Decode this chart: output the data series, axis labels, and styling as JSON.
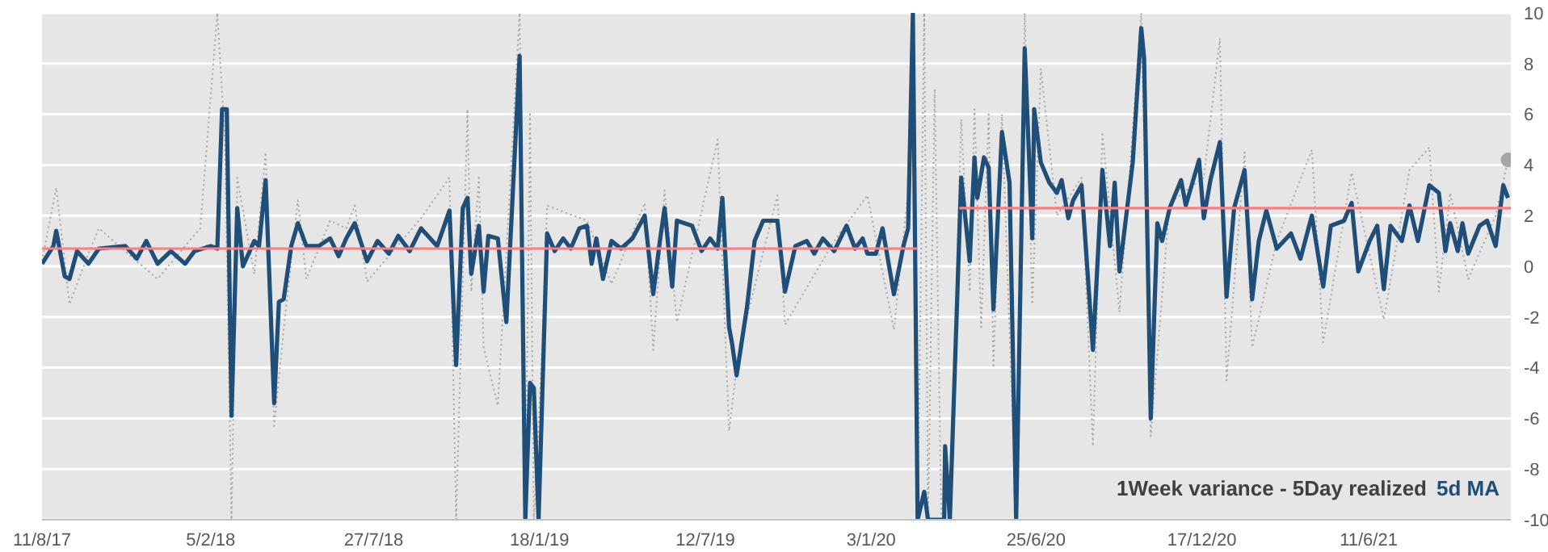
{
  "chart_data": {
    "type": "line",
    "annotations": [
      "1Week variance - 5Day realized"
    ],
    "legend": "bottom right",
    "grid": "y",
    "marker": "none",
    "xlim": [
      "2017-08-11",
      "2021-11-08"
    ],
    "xticks": [
      {
        "value": "2017-08-11",
        "label": "11/8/17"
      },
      {
        "value": "2018-02-05",
        "label": "5/2/18"
      },
      {
        "value": "2018-07-27",
        "label": "27/7/18"
      },
      {
        "value": "2019-01-18",
        "label": "18/1/19"
      },
      {
        "value": "2019-07-12",
        "label": "12/7/19"
      },
      {
        "value": "2020-01-03",
        "label": "3/1/20"
      },
      {
        "value": "2020-06-25",
        "label": "25/6/20"
      },
      {
        "value": "2020-12-17",
        "label": "17/12/20"
      },
      {
        "value": "2021-06-11",
        "label": "11/6/21"
      }
    ],
    "ylim": [
      -10,
      10
    ],
    "yticks": [
      -10,
      -8,
      -6,
      -4,
      -2,
      0,
      2,
      4,
      6,
      8,
      10
    ],
    "series": [
      {
        "color": "#a6a6a6",
        "line_style": "dotted",
        "x": [
          "2017-08-11",
          "2017-08-26",
          "2017-09-09",
          "2017-09-29",
          "2017-10-10",
          "2017-11-19",
          "2017-12-11",
          "2018-01-09",
          "2018-01-25",
          "2018-02-12",
          "2018-02-20",
          "2018-02-27",
          "2018-03-05",
          "2018-03-23",
          "2018-04-04",
          "2018-04-13",
          "2018-04-23",
          "2018-05-08",
          "2018-05-17",
          "2018-06-11",
          "2018-06-28",
          "2018-07-07",
          "2018-07-20",
          "2018-09-15",
          "2018-10-15",
          "2018-10-22",
          "2018-11-03",
          "2018-11-07",
          "2018-11-15",
          "2018-11-20",
          "2018-12-05",
          "2018-12-28",
          "2019-01-03",
          "2019-01-08",
          "2019-01-12",
          "2019-01-20",
          "2019-01-26",
          "2019-03-09",
          "2019-04-04",
          "2019-05-09",
          "2019-05-18",
          "2019-05-30",
          "2019-06-12",
          "2019-07-25",
          "2019-08-06",
          "2019-08-14",
          "2019-08-25",
          "2019-09-26",
          "2019-10-04",
          "2019-11-25",
          "2019-12-30",
          "2020-01-27",
          "2020-02-11",
          "2020-02-16",
          "2020-02-21",
          "2020-02-28",
          "2020-03-03",
          "2020-03-10",
          "2020-03-17",
          "2020-03-26",
          "2020-04-07",
          "2020-04-16",
          "2020-04-21",
          "2020-04-28",
          "2020-05-06",
          "2020-05-11",
          "2020-05-20",
          "2020-06-04",
          "2020-06-13",
          "2020-06-21",
          "2020-06-30",
          "2020-07-17",
          "2020-08-12",
          "2020-08-24",
          "2020-09-03",
          "2020-09-21",
          "2020-10-14",
          "2020-10-24",
          "2020-11-13",
          "2020-12-19",
          "2021-01-05",
          "2021-01-12",
          "2021-01-31",
          "2021-02-08",
          "2021-03-06",
          "2021-04-12",
          "2021-04-24",
          "2021-05-24",
          "2021-06-27",
          "2021-07-24",
          "2021-08-14",
          "2021-08-24",
          "2021-09-05",
          "2021-09-24",
          "2021-10-23",
          "2021-11-05"
        ],
        "values": [
          0.2,
          3.1,
          -1.5,
          0.5,
          1.5,
          0.2,
          -0.5,
          0.8,
          1.5,
          10,
          5.0,
          -10,
          3.5,
          -0.3,
          4.5,
          -6.3,
          -2.5,
          2.6,
          -0.5,
          1.8,
          1.5,
          2.4,
          -0.6,
          1.9,
          3.5,
          -10,
          6.2,
          -1.0,
          3.5,
          -3.2,
          -5.5,
          10,
          -10,
          6.0,
          -10,
          -4.0,
          2.4,
          1.8,
          -0.7,
          2.5,
          -3.3,
          3.0,
          -2.2,
          5.0,
          -6.5,
          -4.0,
          -2.0,
          2.8,
          -2.3,
          1.0,
          2.8,
          -2.5,
          3.0,
          10,
          -10,
          10,
          -10,
          7.0,
          -10,
          -10,
          5.8,
          -1.0,
          6.2,
          -2.4,
          6.0,
          -4.0,
          6.0,
          -10,
          10,
          -1.5,
          7.8,
          2.0,
          3.5,
          -7.1,
          5.3,
          -1.8,
          10,
          -6.7,
          2.5,
          3.5,
          9.0,
          -4.5,
          4.5,
          -3.2,
          1.0,
          4.6,
          -3.0,
          3.7,
          -2.1,
          3.8,
          4.7,
          -1.0,
          2.9,
          -0.5,
          2.0,
          4.2
        ]
      },
      {
        "type": "scatter",
        "marker": "circle",
        "color": "#a6a6a6",
        "x": [
          "2021-11-05"
        ],
        "values": [
          4.2
        ]
      },
      {
        "color": "#ff7c80",
        "line_style": "solid",
        "x": [
          "2017-08-11",
          "2020-02-21",
          "2020-03-15",
          "2020-04-05",
          "2021-11-08"
        ],
        "values": [
          0.7,
          0.7,
          null,
          2.3,
          2.3
        ]
      },
      {
        "name": "5d MA",
        "color": "#1f4e79",
        "line_style": "solid",
        "x": [
          "2017-08-11",
          "2017-08-23",
          "2017-08-26",
          "2017-09-04",
          "2017-09-09",
          "2017-09-17",
          "2017-09-29",
          "2017-10-10",
          "2017-11-07",
          "2017-11-19",
          "2017-11-29",
          "2017-12-11",
          "2017-12-25",
          "2018-01-09",
          "2018-01-19",
          "2018-02-05",
          "2018-02-12",
          "2018-02-17",
          "2018-02-22",
          "2018-02-27",
          "2018-03-05",
          "2018-03-11",
          "2018-03-23",
          "2018-03-28",
          "2018-04-04",
          "2018-04-13",
          "2018-04-18",
          "2018-04-23",
          "2018-05-01",
          "2018-05-08",
          "2018-05-17",
          "2018-05-30",
          "2018-06-11",
          "2018-06-20",
          "2018-06-28",
          "2018-07-07",
          "2018-07-20",
          "2018-07-31",
          "2018-08-12",
          "2018-08-22",
          "2018-09-03",
          "2018-09-15",
          "2018-10-02",
          "2018-10-15",
          "2018-10-22",
          "2018-10-29",
          "2018-11-03",
          "2018-11-07",
          "2018-11-15",
          "2018-11-20",
          "2018-11-25",
          "2018-12-05",
          "2018-12-14",
          "2018-12-28",
          "2019-01-03",
          "2019-01-08",
          "2019-01-12",
          "2019-01-17",
          "2019-01-26",
          "2019-02-03",
          "2019-02-12",
          "2019-02-20",
          "2019-03-01",
          "2019-03-09",
          "2019-03-14",
          "2019-03-19",
          "2019-03-26",
          "2019-04-04",
          "2019-04-14",
          "2019-04-26",
          "2019-05-09",
          "2019-05-18",
          "2019-05-25",
          "2019-05-30",
          "2019-06-07",
          "2019-06-12",
          "2019-06-28",
          "2019-07-08",
          "2019-07-17",
          "2019-07-25",
          "2019-07-30",
          "2019-08-06",
          "2019-08-09",
          "2019-08-14",
          "2019-08-25",
          "2019-09-02",
          "2019-09-11",
          "2019-09-26",
          "2019-10-04",
          "2019-10-15",
          "2019-10-27",
          "2019-11-04",
          "2019-11-13",
          "2019-11-25",
          "2019-12-08",
          "2019-12-17",
          "2019-12-25",
          "2019-12-30",
          "2020-01-08",
          "2020-01-15",
          "2020-01-27",
          "2020-02-06",
          "2020-02-11",
          "2020-02-16",
          "2020-02-21",
          "2020-02-28",
          "2020-03-03",
          "2020-03-20",
          "2020-03-21",
          "2020-03-26",
          "2020-04-07",
          "2020-04-16",
          "2020-04-21",
          "2020-04-24",
          "2020-05-01",
          "2020-05-06",
          "2020-05-11",
          "2020-05-20",
          "2020-05-28",
          "2020-06-04",
          "2020-06-13",
          "2020-06-21",
          "2020-06-23",
          "2020-06-30",
          "2020-07-09",
          "2020-07-17",
          "2020-07-22",
          "2020-07-29",
          "2020-08-03",
          "2020-08-12",
          "2020-08-24",
          "2020-09-03",
          "2020-09-11",
          "2020-09-16",
          "2020-09-21",
          "2020-10-05",
          "2020-10-14",
          "2020-10-17",
          "2020-10-24",
          "2020-10-31",
          "2020-11-05",
          "2020-11-13",
          "2020-11-25",
          "2020-11-30",
          "2020-12-14",
          "2020-12-19",
          "2020-12-26",
          "2021-01-05",
          "2021-01-12",
          "2021-01-20",
          "2021-01-31",
          "2021-02-08",
          "2021-02-15",
          "2021-02-23",
          "2021-03-06",
          "2021-03-21",
          "2021-03-31",
          "2021-04-12",
          "2021-04-24",
          "2021-05-02",
          "2021-05-16",
          "2021-05-24",
          "2021-05-31",
          "2021-06-12",
          "2021-06-20",
          "2021-06-27",
          "2021-07-04",
          "2021-07-16",
          "2021-07-24",
          "2021-08-02",
          "2021-08-14",
          "2021-08-24",
          "2021-08-31",
          "2021-09-05",
          "2021-09-13",
          "2021-09-18",
          "2021-09-24",
          "2021-10-06",
          "2021-10-14",
          "2021-10-23",
          "2021-10-31",
          "2021-11-05"
        ],
        "values": [
          0.1,
          0.8,
          1.4,
          -0.4,
          -0.5,
          0.6,
          0.1,
          0.7,
          0.8,
          0.3,
          1.0,
          0.1,
          0.6,
          0.1,
          0.6,
          0.8,
          0.7,
          6.2,
          6.2,
          -5.9,
          2.3,
          0.0,
          1.0,
          0.8,
          3.4,
          -5.4,
          -1.4,
          -1.3,
          0.8,
          1.7,
          0.8,
          0.8,
          1.1,
          0.4,
          1.1,
          1.7,
          0.2,
          1.0,
          0.5,
          1.2,
          0.6,
          1.5,
          0.8,
          2.2,
          -3.9,
          2.3,
          2.7,
          -0.3,
          1.6,
          -1.0,
          1.2,
          1.1,
          -2.2,
          8.3,
          -10,
          -4.6,
          -4.8,
          -10,
          1.3,
          0.6,
          1.1,
          0.7,
          1.5,
          1.6,
          0.1,
          1.1,
          -0.5,
          1.0,
          0.7,
          1.1,
          2.0,
          -1.1,
          1.0,
          2.3,
          -0.8,
          1.8,
          1.6,
          0.6,
          1.1,
          0.7,
          2.7,
          -2.4,
          -3.0,
          -4.3,
          -1.6,
          1.0,
          1.8,
          1.8,
          -1.0,
          0.8,
          1.0,
          0.5,
          1.1,
          0.6,
          1.6,
          0.7,
          1.1,
          0.5,
          0.5,
          1.5,
          -1.1,
          0.8,
          1.5,
          10,
          -10,
          -8.9,
          -10,
          -10,
          -7.1,
          -10,
          3.5,
          0.2,
          4.3,
          2.7,
          4.3,
          3.9,
          -1.7,
          5.3,
          3.3,
          -10,
          8.6,
          1.1,
          6.2,
          4.1,
          3.3,
          2.9,
          3.4,
          1.9,
          2.6,
          3.2,
          -3.3,
          3.8,
          0.8,
          3.3,
          -0.2,
          4.1,
          9.4,
          8.2,
          -6.0,
          1.7,
          1.0,
          2.3,
          3.4,
          2.4,
          4.2,
          1.9,
          3.4,
          4.9,
          -1.2,
          2.3,
          3.8,
          -1.3,
          1.0,
          2.2,
          0.7,
          1.3,
          0.3,
          2.0,
          -0.8,
          1.6,
          1.8,
          2.5,
          -0.2,
          1.0,
          1.6,
          -0.9,
          1.6,
          1.0,
          2.4,
          1.0,
          3.2,
          2.9,
          0.6,
          1.7,
          0.6,
          1.7,
          0.5,
          1.6,
          1.8,
          0.8,
          3.2,
          2.7
        ]
      }
    ]
  }
}
